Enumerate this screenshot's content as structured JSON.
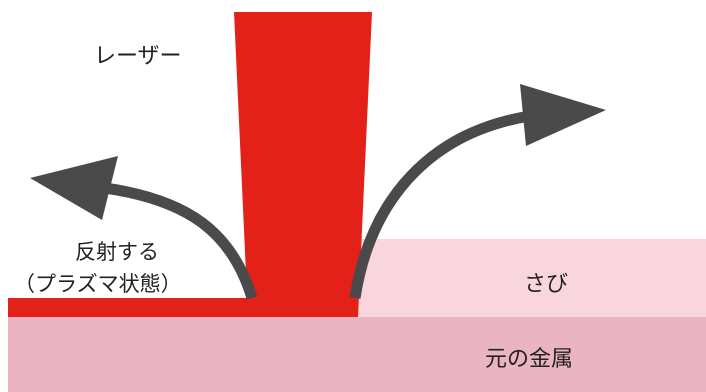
{
  "labels": {
    "laser": "レーザー",
    "reflect_line1": "反射する",
    "reflect_line2": "（プラズマ状態）",
    "rust": "さび",
    "base_metal": "元の金属"
  },
  "colors": {
    "laser_red": "#e32119",
    "rust_pink": "#f9d6de",
    "metal_pink": "#ebb4c3",
    "arrow_gray": "#4a4a4a",
    "text": "#222222"
  }
}
